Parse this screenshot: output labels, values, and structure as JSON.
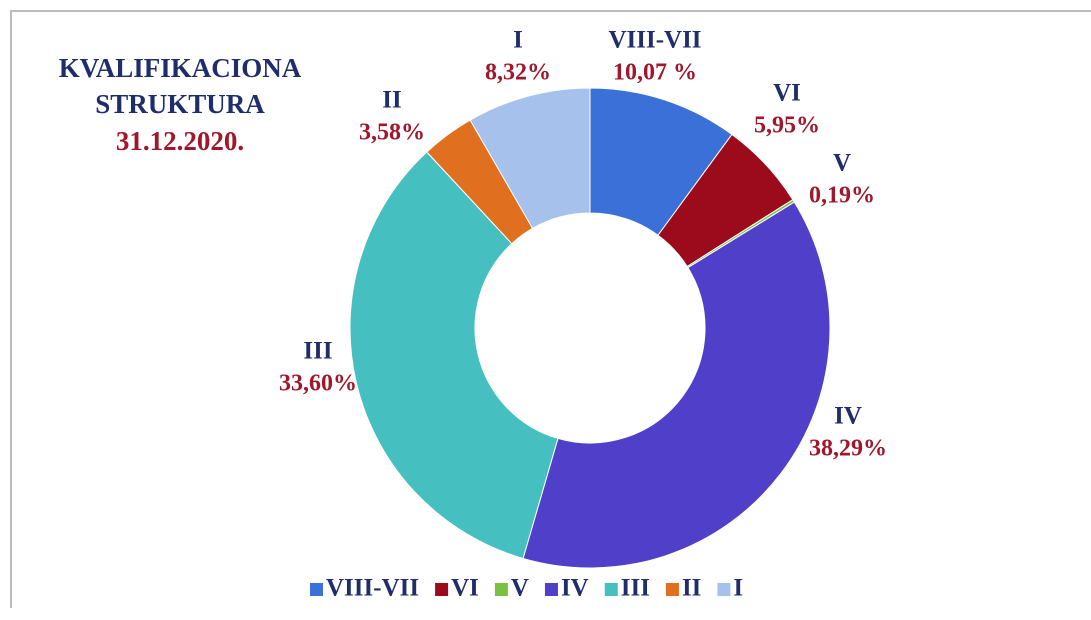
{
  "chart_data": {
    "type": "donut",
    "title": "KVALIFIKACIONA STRUKTURA",
    "subtitle": "31.12.2020.",
    "categories": [
      "VIII-VII",
      "VI",
      "V",
      "IV",
      "III",
      "II",
      "I"
    ],
    "values": [
      10.07,
      5.95,
      0.19,
      38.29,
      33.6,
      3.58,
      8.32
    ],
    "value_labels": [
      "10,07 %",
      "5,95%",
      "0,19%",
      "38,29%",
      "33,60%",
      "3,58%",
      "8,32%"
    ],
    "colors": [
      "#3b70d9",
      "#9c0b1c",
      "#7ac143",
      "#4f3fc9",
      "#45bfbf",
      "#e07020",
      "#a6c1ec"
    ],
    "legend": "bottom"
  }
}
